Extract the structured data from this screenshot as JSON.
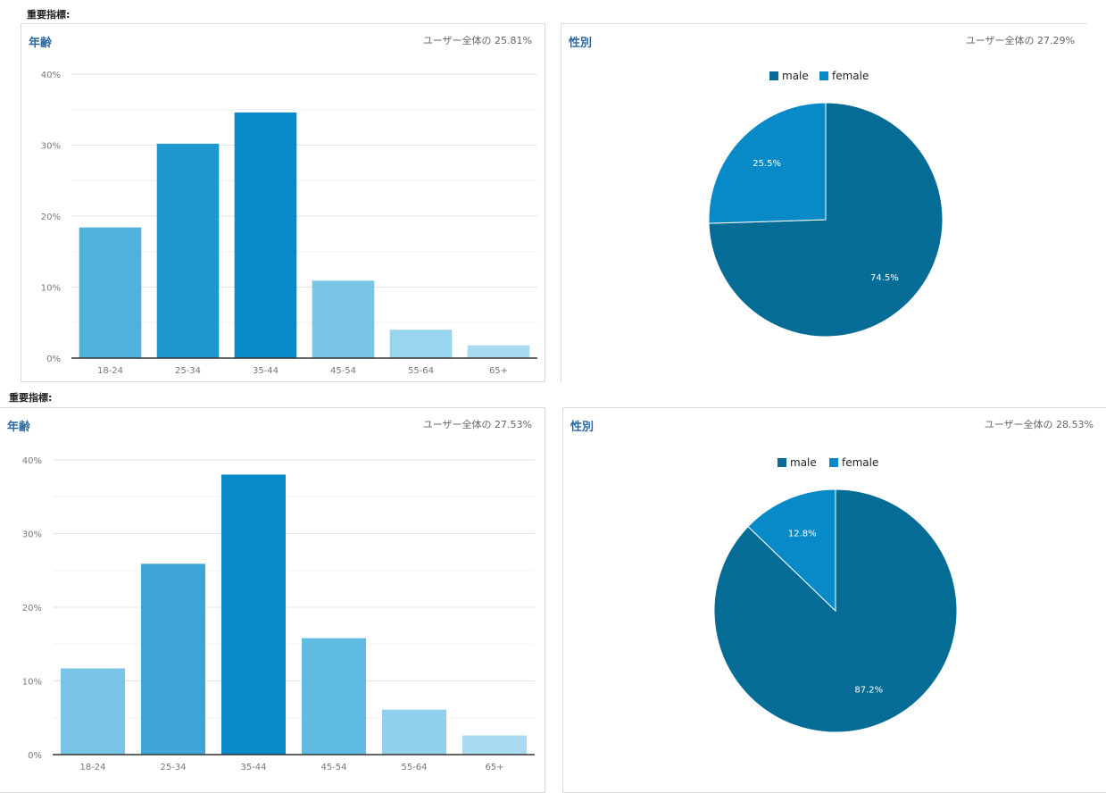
{
  "sections": [
    {
      "heading": "重要指標:",
      "age_card": {
        "title": "年齢",
        "subtitle": "ユーザー全体の 25.81%"
      },
      "gender_card": {
        "title": "性別",
        "subtitle": "ユーザー全体の 27.29%"
      }
    },
    {
      "heading": "重要指標:",
      "age_card": {
        "title": "年齢",
        "subtitle": "ユーザー全体の 27.53%"
      },
      "gender_card": {
        "title": "性別",
        "subtitle": "ユーザー全体の 28.53%"
      }
    }
  ],
  "chart_data": [
    {
      "type": "bar",
      "title": "年齢",
      "categories": [
        "18-24",
        "25-34",
        "35-44",
        "45-54",
        "55-64",
        "65+"
      ],
      "values": [
        18.4,
        30.2,
        34.6,
        10.9,
        4.0,
        1.8
      ],
      "unit": "%",
      "ylim": [
        0,
        40
      ],
      "yticks": [
        "0%",
        "10%",
        "20%",
        "30%",
        "40%"
      ],
      "grid": true,
      "colors": [
        "#50b1dc",
        "#1f97cf",
        "#078ac7",
        "#78c5e5",
        "#9ad5ef",
        "#a9dcf2"
      ]
    },
    {
      "type": "pie",
      "title": "性別",
      "labels": [
        "male",
        "female"
      ],
      "values": [
        74.5,
        25.5
      ],
      "value_labels": [
        "74.5%",
        "25.5%"
      ],
      "colors": [
        "#056c96",
        "#078ac7"
      ],
      "legend": "top"
    },
    {
      "type": "bar",
      "title": "年齢",
      "categories": [
        "18-24",
        "25-34",
        "35-44",
        "45-54",
        "55-64",
        "65+"
      ],
      "values": [
        11.7,
        25.9,
        38.0,
        15.8,
        6.1,
        2.6
      ],
      "unit": "%",
      "ylim": [
        0,
        40
      ],
      "yticks": [
        "0%",
        "10%",
        "20%",
        "30%",
        "40%"
      ],
      "grid": true,
      "colors": [
        "#78c5e5",
        "#3ea6d6",
        "#078ac7",
        "#5fbbe1",
        "#92d1ed",
        "#a9dcf2"
      ]
    },
    {
      "type": "pie",
      "title": "性別",
      "labels": [
        "male",
        "female"
      ],
      "values": [
        87.2,
        12.8
      ],
      "value_labels": [
        "87.2%",
        "12.8%"
      ],
      "colors": [
        "#056c96",
        "#078ac7"
      ],
      "legend": "top"
    }
  ]
}
